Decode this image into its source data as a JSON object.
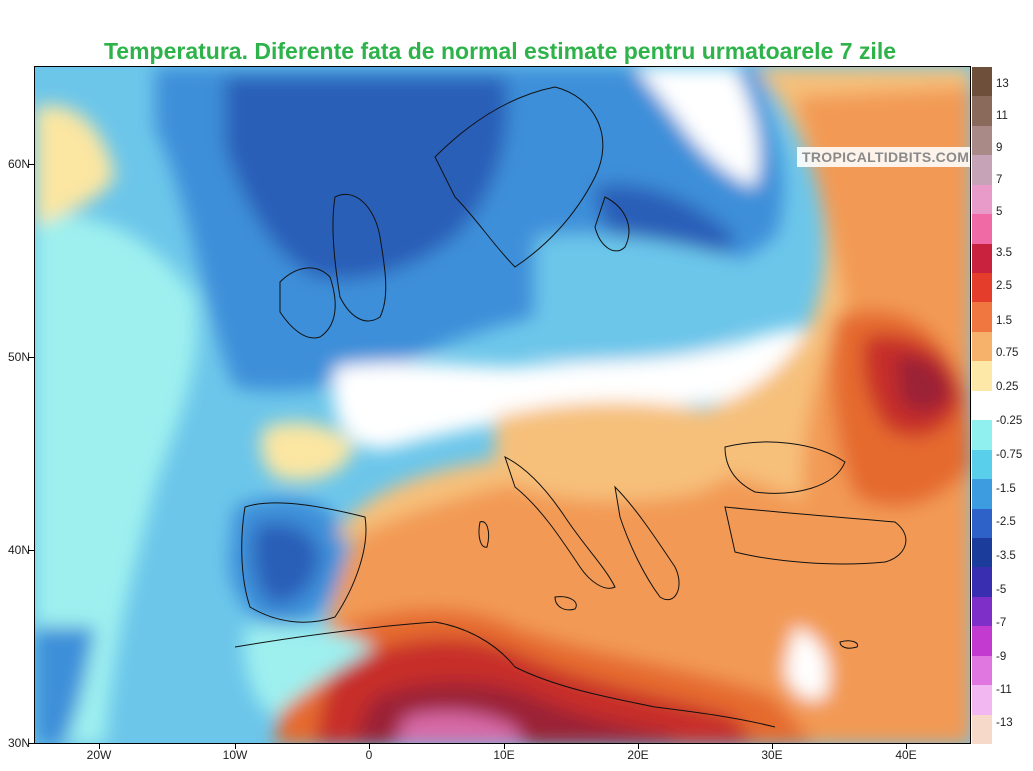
{
  "title": "Temperatura. Diferente fata de normal estimate pentru urmatoarele 7 zile",
  "watermark": "TROPICALTIDBITS.COM",
  "lat_labels": [
    "60N",
    "50N",
    "40N",
    "30N"
  ],
  "lon_labels": [
    "20W",
    "10W",
    "0",
    "10E",
    "20E",
    "30E",
    "40E"
  ],
  "colorbar": {
    "labels": [
      "13",
      "11",
      "9",
      "7",
      "5",
      "3.5",
      "2.5",
      "1.5",
      "0.75",
      "0.25",
      "-0.25",
      "-0.75",
      "-1.5",
      "-2.5",
      "-3.5",
      "-5",
      "-7",
      "-9",
      "-11",
      "-13"
    ],
    "colors": [
      "#6e4f3a",
      "#8a6a5a",
      "#a98a86",
      "#c6a3b6",
      "#e89ac9",
      "#f06aa6",
      "#c8223f",
      "#e43d2b",
      "#f07840",
      "#f6b26b",
      "#fde8a8",
      "#ffffff",
      "#90f0f0",
      "#59cfec",
      "#3d9be0",
      "#2e62c8",
      "#1c3c9c",
      "#3a2eb0",
      "#7e2fc8",
      "#c23ad0",
      "#e077e0",
      "#f2b6f0",
      "#f7d9c9"
    ]
  },
  "map_colors": {
    "dark_blue": "#2a5fb8",
    "blue": "#3c8fd9",
    "light_blue": "#6cc6ea",
    "cyan": "#9ef0ef",
    "white": "#ffffff",
    "yellow": "#fbe6a2",
    "light_orange": "#f6c07a",
    "orange": "#f29a55",
    "dark_orange": "#e56a2f",
    "red": "#c72d2b",
    "dark_red": "#9b2034",
    "pink": "#d86aa8"
  }
}
